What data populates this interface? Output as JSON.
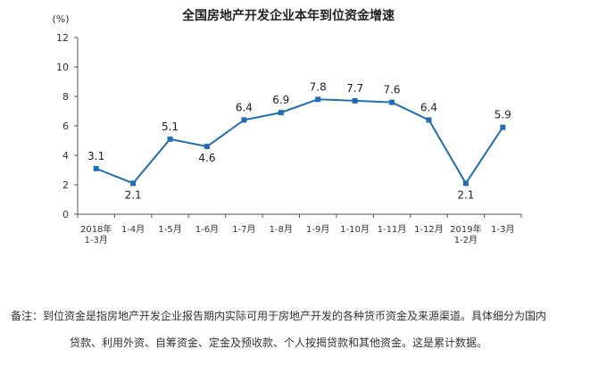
{
  "chart_data": {
    "type": "line",
    "title": "全国房地产开发企业本年到位资金增速",
    "ylabel": "(%)",
    "xlabel": "",
    "ylim": [
      0,
      12
    ],
    "yticks": [
      "0",
      "2",
      "4",
      "6",
      "8",
      "10",
      "12"
    ],
    "grid": false,
    "categories": [
      [
        "2018年",
        "1-3月"
      ],
      [
        "1-4月"
      ],
      [
        "1-5月"
      ],
      [
        "1-6月"
      ],
      [
        "1-7月"
      ],
      [
        "1-8月"
      ],
      [
        "1-9月"
      ],
      [
        "1-10月"
      ],
      [
        "1-11月"
      ],
      [
        "1-12月"
      ],
      [
        "2019年",
        "1-2月"
      ],
      [
        "1-3月"
      ]
    ],
    "values": [
      3.1,
      2.1,
      5.1,
      4.6,
      6.4,
      6.9,
      7.8,
      7.7,
      7.6,
      6.4,
      2.1,
      5.9
    ],
    "data_labels": [
      "3.1",
      "2.1",
      "5.1",
      "4.6",
      "6.4",
      "6.9",
      "7.8",
      "7.7",
      "7.6",
      "6.4",
      "2.1",
      "5.9"
    ],
    "color": "#1f6eb5"
  },
  "note": {
    "line1": "备注：到位资金是指房地产开发企业报告期内实际可用于房地产开发的各种货币资金及来源渠道。具体细分为国内",
    "line2": "贷款、利用外资、自筹资金、定金及预收款、个人按揭贷款和其他资金。这是累计数据。"
  }
}
